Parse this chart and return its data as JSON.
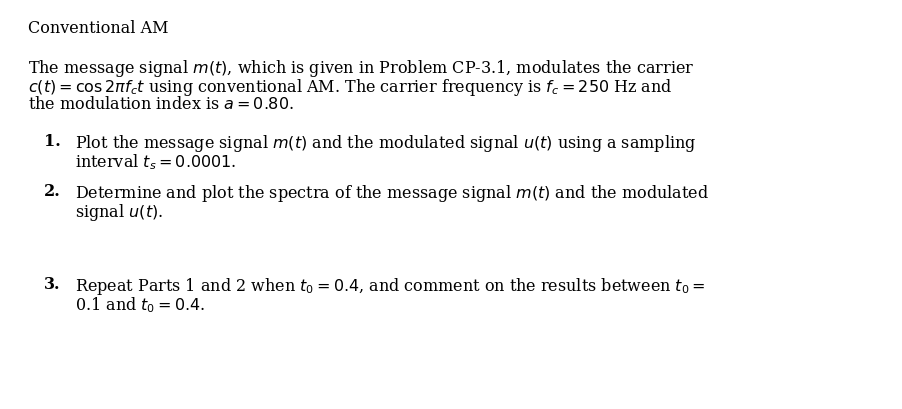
{
  "title": "Conventional AM",
  "background_color": "#ffffff",
  "text_color": "#000000",
  "figsize": [
    9.03,
    4.09
  ],
  "dpi": 100,
  "line1": "The message signal $m(t)$, which is given in Problem CP-3.1, modulates the carrier",
  "line2": "$c(t) = \\cos 2\\pi f_c t$ using conventional AM. The carrier frequency is $f_c = 250$ Hz and",
  "line3": "the modulation index is $a = 0.80$.",
  "num1": "1.",
  "item1_line1": "Plot the message signal $m(t)$ and the modulated signal $u(t)$ using a sampling",
  "item1_line2": "interval $t_s = 0.0001$.",
  "num2": "2.",
  "item2_line1": "Determine and plot the spectra of the message signal $m(t)$ and the modulated",
  "item2_line2": "signal $u(t)$.",
  "num3": "3.",
  "item3_line1": "Repeat Parts 1 and 2 when $t_0 = 0.4$, and comment on the results between $t_0 =$",
  "item3_line2": "0.1 and $t_0 = 0.4$."
}
